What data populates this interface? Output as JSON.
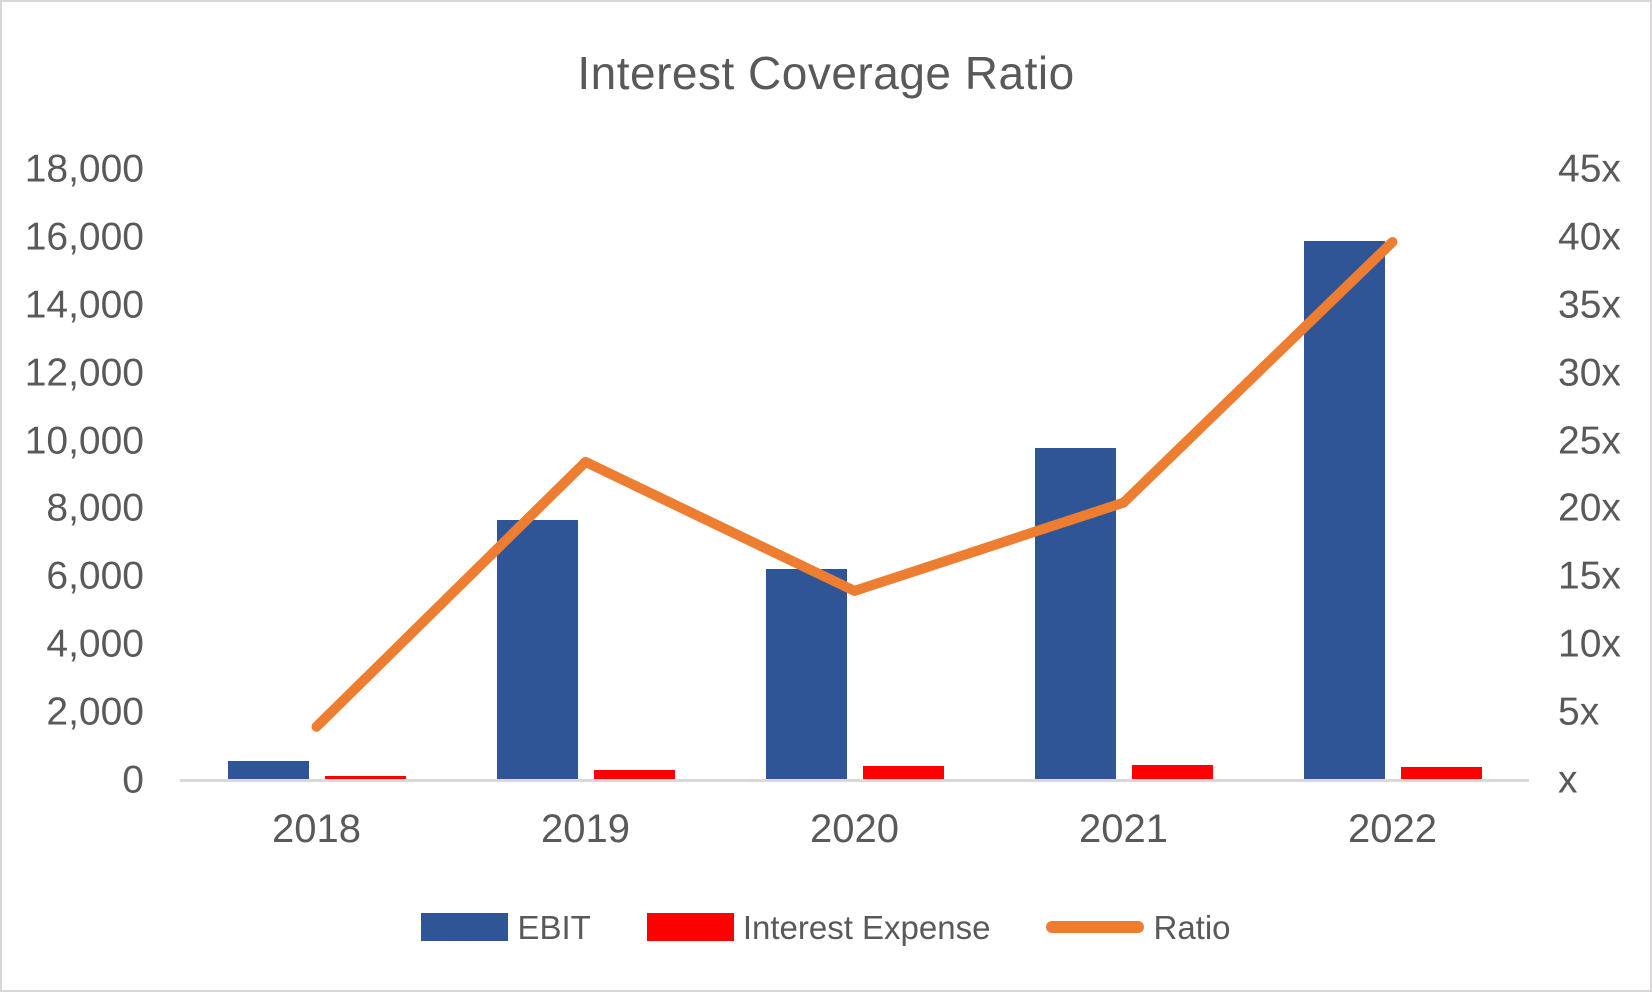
{
  "title": "Interest Coverage Ratio",
  "colors": {
    "ebit": "#2F5597",
    "interest_expense": "#FF0000",
    "ratio_line": "#ED7D31",
    "text": "#595959",
    "axis_line": "#D9D9D9",
    "frame": "#D8D6D6"
  },
  "chart_data": {
    "type": "combo",
    "title": "Interest Coverage Ratio",
    "categories": [
      "2018",
      "2019",
      "2020",
      "2021",
      "2022"
    ],
    "series": [
      {
        "name": "EBIT",
        "type": "bar",
        "axis": "left",
        "color": "#2F5597",
        "values": [
          600,
          7700,
          6250,
          9800,
          15900
        ]
      },
      {
        "name": "Interest Expense",
        "type": "bar",
        "axis": "left",
        "color": "#FF0000",
        "values": [
          150,
          325,
          430,
          475,
          400
        ]
      },
      {
        "name": "Ratio",
        "type": "line",
        "axis": "right",
        "color": "#ED7D31",
        "values": [
          4,
          23.5,
          14,
          20.5,
          39.7
        ]
      }
    ],
    "left_axis": {
      "min": 0,
      "max": 18000,
      "step": 2000,
      "tick_labels": [
        "18,000",
        "16,000",
        "14,000",
        "12,000",
        "10,000",
        "8,000",
        "6,000",
        "4,000",
        "2,000",
        "0"
      ]
    },
    "right_axis": {
      "min": 0,
      "max": 45,
      "step": 5,
      "tick_labels": [
        "45x",
        "40x",
        "35x",
        "30x",
        "25x",
        "20x",
        "15x",
        "10x",
        "5x",
        "x"
      ]
    },
    "grid": false,
    "legend_position": "bottom"
  },
  "legend": {
    "items": [
      {
        "label": "EBIT",
        "swatch": "bar",
        "color": "#2F5597"
      },
      {
        "label": "Interest Expense",
        "swatch": "bar",
        "color": "#FF0000"
      },
      {
        "label": "Ratio",
        "swatch": "line",
        "color": "#ED7D31"
      }
    ]
  }
}
